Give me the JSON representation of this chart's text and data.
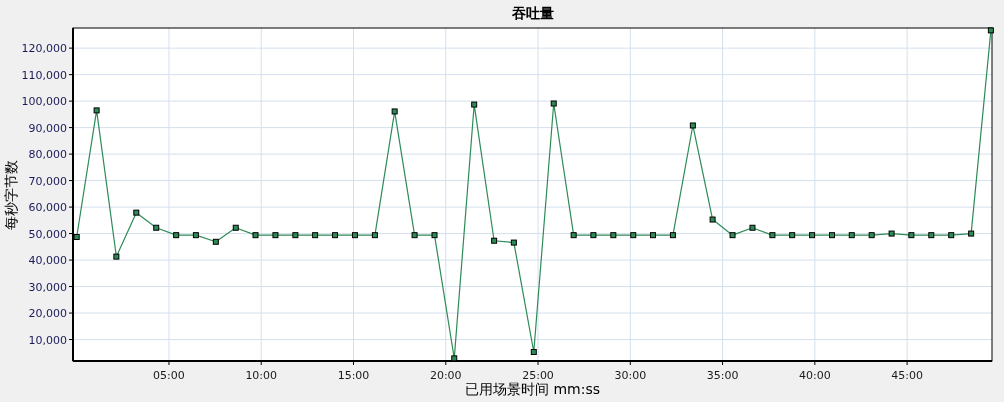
{
  "chart_data": {
    "type": "line",
    "title": "吞吐量",
    "xlabel": "已用场景时间 mm:ss",
    "ylabel": "每秒字节数",
    "x": [
      0,
      1.08,
      2.15,
      3.23,
      4.31,
      5.39,
      6.46,
      7.54,
      8.62,
      9.69,
      10.77,
      11.85,
      12.92,
      14,
      15.08,
      16.16,
      17.23,
      18.31,
      19.39,
      20.46,
      21.54,
      22.62,
      23.69,
      24.77,
      25.85,
      26.93,
      28,
      29.08,
      30.16,
      31.23,
      32.31,
      33.39,
      34.46,
      35.54,
      36.62,
      37.7,
      38.77,
      39.85,
      40.93,
      42,
      43.08,
      44.16,
      45.23,
      46.31,
      47.39,
      48.47,
      49.54
    ],
    "series": [
      {
        "color": "#2e8b57",
        "values": [
          48700,
          96500,
          41300,
          57900,
          52200,
          49400,
          49400,
          46900,
          52200,
          49400,
          49400,
          49400,
          49400,
          49400,
          49400,
          49400,
          96100,
          49400,
          49400,
          2900,
          98700,
          47300,
          46600,
          5300,
          99100,
          49400,
          49400,
          49400,
          49400,
          49400,
          49400,
          90800,
          55300,
          49400,
          52200,
          49400,
          49400,
          49400,
          49400,
          49400,
          49400,
          50000,
          49400,
          49400,
          49400,
          50000,
          126700
        ]
      }
    ],
    "xlim": [
      -0.2,
      49.6
    ],
    "ylim": [
      1900,
      127600
    ],
    "xticks": [
      {
        "value": 5,
        "label": "05:00"
      },
      {
        "value": 10,
        "label": "10:00"
      },
      {
        "value": 15,
        "label": "15:00"
      },
      {
        "value": 20,
        "label": "20:00"
      },
      {
        "value": 25,
        "label": "25:00"
      },
      {
        "value": 30,
        "label": "30:00"
      },
      {
        "value": 35,
        "label": "35:00"
      },
      {
        "value": 40,
        "label": "40:00"
      },
      {
        "value": 45,
        "label": "45:00"
      }
    ],
    "yticks": [
      {
        "value": 10000,
        "label": "10,000"
      },
      {
        "value": 20000,
        "label": "20,000"
      },
      {
        "value": 30000,
        "label": "30,000"
      },
      {
        "value": 40000,
        "label": "40,000"
      },
      {
        "value": 50000,
        "label": "50,000"
      },
      {
        "value": 60000,
        "label": "60,000"
      },
      {
        "value": 70000,
        "label": "70,000"
      },
      {
        "value": 80000,
        "label": "80,000"
      },
      {
        "value": 90000,
        "label": "90,000"
      },
      {
        "value": 100000,
        "label": "100,000"
      },
      {
        "value": 110000,
        "label": "110,000"
      },
      {
        "value": 120000,
        "label": "120,000"
      }
    ],
    "grid": true,
    "marker": "square",
    "line_style": "solid"
  }
}
